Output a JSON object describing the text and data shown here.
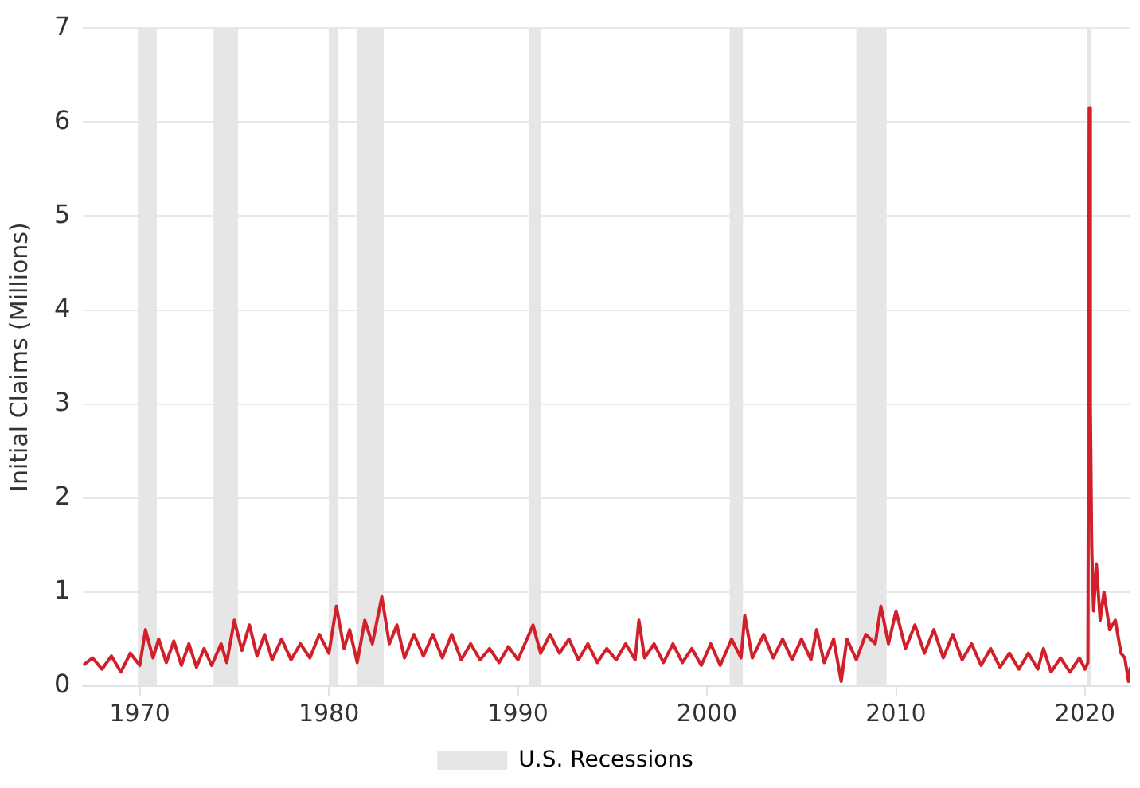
{
  "chart_data": {
    "type": "line",
    "ylabel": "Initial Claims (Millions)",
    "xlim": [
      1967,
      2022.4
    ],
    "xticks": [
      1970,
      1980,
      1990,
      2000,
      2010,
      2020
    ],
    "ylim": [
      0,
      7
    ],
    "yticks": [
      0,
      1,
      2,
      3,
      4,
      5,
      6,
      7
    ],
    "grid": "y",
    "legend": "bottom",
    "marker": "none",
    "line_style": "solid",
    "series": [
      {
        "color": "#d2202b",
        "x": [
          1967,
          1967.5,
          1968,
          1968.5,
          1969,
          1969.5,
          1970,
          1970.3,
          1970.7,
          1971,
          1971.4,
          1971.8,
          1972.2,
          1972.6,
          1973,
          1973.4,
          1973.8,
          1974.3,
          1974.6,
          1975,
          1975.4,
          1975.8,
          1976.2,
          1976.6,
          1977,
          1977.5,
          1978,
          1978.5,
          1979,
          1979.5,
          1980,
          1980.4,
          1980.8,
          1981.1,
          1981.5,
          1981.9,
          1982.3,
          1982.8,
          1983.2,
          1983.6,
          1984,
          1984.5,
          1985,
          1985.5,
          1986,
          1986.5,
          1987,
          1987.5,
          1988,
          1988.5,
          1989,
          1989.5,
          1990,
          1990.8,
          1991.2,
          1991.7,
          1992.2,
          1992.7,
          1993.2,
          1993.7,
          1994.2,
          1994.7,
          1995.2,
          1995.7,
          1996.2,
          1996.4,
          1996.7,
          1997.2,
          1997.7,
          1998.2,
          1998.7,
          1999.2,
          1999.7,
          2000.2,
          2000.7,
          2001.3,
          2001.8,
          2002,
          2002.4,
          2003,
          2003.5,
          2004,
          2004.5,
          2005,
          2005.5,
          2005.8,
          2006.2,
          2006.7,
          2007.1,
          2007.4,
          2007.9,
          2008.4,
          2008.9,
          2009.2,
          2009.6,
          2010,
          2010.5,
          2011,
          2011.5,
          2012,
          2012.5,
          2013,
          2013.5,
          2014,
          2014.5,
          2015,
          2015.5,
          2016,
          2016.5,
          2017,
          2017.5,
          2017.8,
          2018.2,
          2018.7,
          2019.2,
          2019.7,
          2020,
          2020.15,
          2020.22,
          2020.28,
          2020.35,
          2020.45,
          2020.6,
          2020.8,
          2021,
          2021.3,
          2021.6,
          2021.9,
          2022.1,
          2022.3,
          2022.4
        ],
        "values": [
          0.22,
          0.3,
          0.18,
          0.32,
          0.15,
          0.35,
          0.22,
          0.6,
          0.3,
          0.5,
          0.25,
          0.48,
          0.22,
          0.45,
          0.2,
          0.4,
          0.22,
          0.45,
          0.25,
          0.7,
          0.38,
          0.65,
          0.32,
          0.55,
          0.28,
          0.5,
          0.28,
          0.45,
          0.3,
          0.55,
          0.35,
          0.85,
          0.4,
          0.6,
          0.25,
          0.7,
          0.45,
          0.95,
          0.45,
          0.65,
          0.3,
          0.55,
          0.32,
          0.55,
          0.3,
          0.55,
          0.28,
          0.45,
          0.28,
          0.4,
          0.25,
          0.42,
          0.28,
          0.65,
          0.35,
          0.55,
          0.35,
          0.5,
          0.28,
          0.45,
          0.25,
          0.4,
          0.28,
          0.45,
          0.28,
          0.7,
          0.3,
          0.45,
          0.25,
          0.45,
          0.25,
          0.4,
          0.22,
          0.45,
          0.22,
          0.5,
          0.3,
          0.75,
          0.3,
          0.55,
          0.3,
          0.5,
          0.28,
          0.5,
          0.28,
          0.6,
          0.25,
          0.5,
          0.05,
          0.5,
          0.28,
          0.55,
          0.45,
          0.85,
          0.45,
          0.8,
          0.4,
          0.65,
          0.35,
          0.6,
          0.3,
          0.55,
          0.28,
          0.45,
          0.22,
          0.4,
          0.2,
          0.35,
          0.18,
          0.35,
          0.18,
          0.4,
          0.15,
          0.3,
          0.15,
          0.3,
          0.18,
          0.25,
          6.15,
          3,
          1.5,
          0.8,
          1.3,
          0.7,
          1,
          0.6,
          0.7,
          0.35,
          0.3,
          0.05,
          0.2
        ]
      }
    ],
    "bands": [
      {
        "axis": "x",
        "from": 1969.9,
        "to": 1970.9,
        "color": "#e6e6e6",
        "label": "U.S. Recessions"
      },
      {
        "axis": "x",
        "from": 1973.9,
        "to": 1975.2,
        "color": "#e6e6e6"
      },
      {
        "axis": "x",
        "from": 1980,
        "to": 1980.5,
        "color": "#e6e6e6"
      },
      {
        "axis": "x",
        "from": 1981.5,
        "to": 1982.9,
        "color": "#e6e6e6"
      },
      {
        "axis": "x",
        "from": 1990.6,
        "to": 1991.2,
        "color": "#e6e6e6"
      },
      {
        "axis": "x",
        "from": 2001.2,
        "to": 2001.9,
        "color": "#e6e6e6"
      },
      {
        "axis": "x",
        "from": 2007.9,
        "to": 2009.5,
        "color": "#e6e6e6"
      },
      {
        "axis": "x",
        "from": 2020.1,
        "to": 2020.3,
        "color": "#e6e6e6"
      }
    ]
  }
}
